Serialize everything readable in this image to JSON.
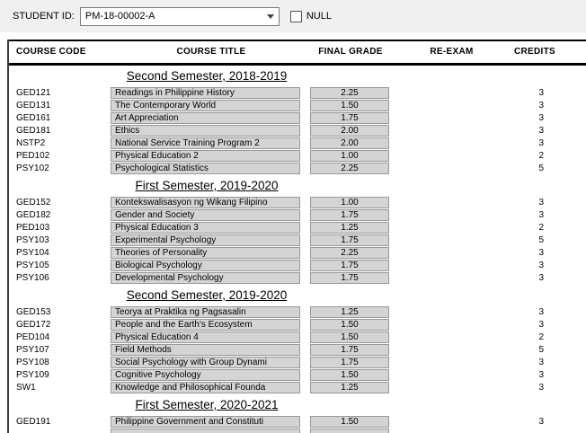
{
  "toolbar": {
    "student_id_label": "STUDENT ID:",
    "student_id_value": "PM-18-00002-A",
    "null_label": "NULL",
    "null_checked": false
  },
  "table": {
    "headers": [
      "COURSE CODE",
      "COURSE TITLE",
      "FINAL GRADE",
      "RE-EXAM",
      "CREDITS"
    ],
    "sections": [
      {
        "title": "Second Semester, 2018-2019",
        "rows": [
          {
            "code": "GED121",
            "title": "Readings in Philippine History",
            "grade": "2.25",
            "re_exam": "",
            "credits": "3"
          },
          {
            "code": "GED131",
            "title": "The Contemporary World",
            "grade": "1.50",
            "re_exam": "",
            "credits": "3"
          },
          {
            "code": "GED161",
            "title": "Art Appreciation",
            "grade": "1.75",
            "re_exam": "",
            "credits": "3"
          },
          {
            "code": "GED181",
            "title": "Ethics",
            "grade": "2.00",
            "re_exam": "",
            "credits": "3"
          },
          {
            "code": "NSTP2",
            "title": "National Service Training Program 2",
            "grade": "2.00",
            "re_exam": "",
            "credits": "3"
          },
          {
            "code": "PED102",
            "title": "Physical Education 2",
            "grade": "1.00",
            "re_exam": "",
            "credits": "2"
          },
          {
            "code": "PSY102",
            "title": "Psychological Statistics",
            "grade": "2.25",
            "re_exam": "",
            "credits": "5"
          }
        ]
      },
      {
        "title": "First Semester, 2019-2020",
        "rows": [
          {
            "code": "GED152",
            "title": "Kontekswalisasyon ng Wikang Filipino",
            "grade": "1.00",
            "re_exam": "",
            "credits": "3"
          },
          {
            "code": "GED182",
            "title": "Gender and Society",
            "grade": "1.75",
            "re_exam": "",
            "credits": "3"
          },
          {
            "code": "PED103",
            "title": "Physical Education 3",
            "grade": "1.25",
            "re_exam": "",
            "credits": "2"
          },
          {
            "code": "PSY103",
            "title": "Experimental Psychology",
            "grade": "1.75",
            "re_exam": "",
            "credits": "5"
          },
          {
            "code": "PSY104",
            "title": "Theories of Personality",
            "grade": "2.25",
            "re_exam": "",
            "credits": "3"
          },
          {
            "code": "PSY105",
            "title": "Biological Psychology",
            "grade": "1.75",
            "re_exam": "",
            "credits": "3"
          },
          {
            "code": "PSY106",
            "title": "Developmental Psychology",
            "grade": "1.75",
            "re_exam": "",
            "credits": "3"
          }
        ]
      },
      {
        "title": "Second Semester, 2019-2020",
        "rows": [
          {
            "code": "GED153",
            "title": "Teorya at Praktika ng Pagsasalin",
            "grade": "1.25",
            "re_exam": "",
            "credits": "3"
          },
          {
            "code": "GED172",
            "title": "People and the Earth's Ecosystem",
            "grade": "1.50",
            "re_exam": "",
            "credits": "3"
          },
          {
            "code": "PED104",
            "title": "Physical Education 4",
            "grade": "1.50",
            "re_exam": "",
            "credits": "2"
          },
          {
            "code": "PSY107",
            "title": "Field Methods",
            "grade": "1.75",
            "re_exam": "",
            "credits": "5"
          },
          {
            "code": "PSY108",
            "title": "Social Psychology with Group Dynami",
            "grade": "1.75",
            "re_exam": "",
            "credits": "3"
          },
          {
            "code": "PSY109",
            "title": "Cognitive Psychology",
            "grade": "1.50",
            "re_exam": "",
            "credits": "3"
          },
          {
            "code": "SW1",
            "title": "Knowledge and Philosophical Founda",
            "grade": "1.25",
            "re_exam": "",
            "credits": "3"
          }
        ]
      },
      {
        "title": "First Semester, 2020-2021",
        "rows": [
          {
            "code": "GED191",
            "title": "Philippine Government and Constituti",
            "grade": "1.50",
            "re_exam": "",
            "credits": "3"
          },
          {
            "code": "",
            "title": "",
            "grade": "",
            "re_exam": "",
            "credits": ""
          }
        ]
      }
    ]
  },
  "colors": {
    "toolbar_bg": "#f0f0f0",
    "box_fill": "#d4d4d4",
    "box_border": "#999999",
    "rule": "#000000"
  }
}
